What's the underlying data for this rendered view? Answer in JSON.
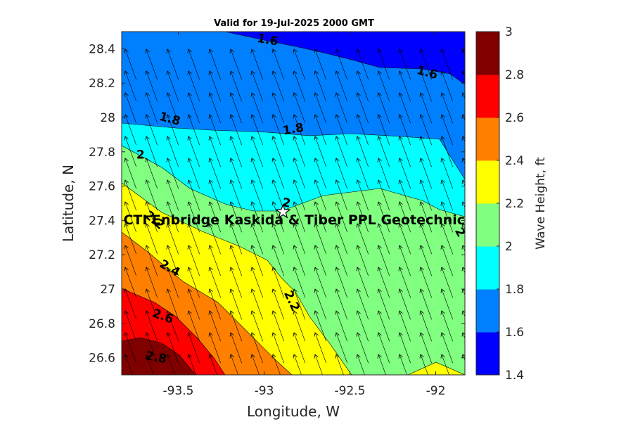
{
  "chart_data": {
    "type": "heatmap",
    "title": "Valid for 19-Jul-2025 2000 GMT",
    "xlabel": "Longitude, W",
    "ylabel": "Latitude, N",
    "colorbar_label": "Wave Height, ft",
    "xlim": [
      -93.83,
      -91.83
    ],
    "ylim": [
      26.5,
      28.5
    ],
    "x_ticks": [
      -93.5,
      -93,
      -92.5,
      -92
    ],
    "x_tick_labels": [
      "-93.5",
      "-93",
      "-92.5",
      "-92"
    ],
    "y_ticks": [
      26.6,
      26.8,
      27.0,
      27.2,
      27.4,
      27.6,
      27.8,
      28.0,
      28.2,
      28.4
    ],
    "y_tick_labels": [
      "26.6",
      "26.8",
      "27",
      "27.2",
      "27.4",
      "27.6",
      "27.8",
      "28",
      "28.2",
      "28.4"
    ],
    "colorbar_ticks": [
      "1.4",
      "1.6",
      "1.8",
      "2",
      "2.2",
      "2.4",
      "2.6",
      "2.8",
      "3"
    ],
    "levels": [
      1.4,
      1.6,
      1.8,
      2.0,
      2.2,
      2.4,
      2.6,
      2.8,
      3.0
    ],
    "level_colors": [
      "#0000ff",
      "#0080ff",
      "#00ffff",
      "#80ff80",
      "#ffff00",
      "#ff8000",
      "#ff0000",
      "#800000"
    ],
    "contour_labels": [
      {
        "text": "1.6",
        "lon": -92.98,
        "lat": 28.45
      },
      {
        "text": "1.6",
        "lon": -92.05,
        "lat": 28.26
      },
      {
        "text": "1.8",
        "lon": -93.55,
        "lat": 27.99
      },
      {
        "text": "1.8",
        "lon": -92.83,
        "lat": 27.93
      },
      {
        "text": "2",
        "lon": -93.72,
        "lat": 27.78
      },
      {
        "text": "2",
        "lon": -92.87,
        "lat": 27.5
      },
      {
        "text": "2",
        "lon": -91.86,
        "lat": 27.33
      },
      {
        "text": "2.2",
        "lon": -93.64,
        "lat": 27.4
      },
      {
        "text": "2.2",
        "lon": -92.84,
        "lat": 26.93
      },
      {
        "text": "2.4",
        "lon": -93.55,
        "lat": 27.12
      },
      {
        "text": "2.6",
        "lon": -93.59,
        "lat": 26.84
      },
      {
        "text": "2.8",
        "lon": -93.63,
        "lat": 26.6
      }
    ],
    "site": {
      "name": "CTI Enbridge  Kaskida & Tiber PPL Geotechnic",
      "lon": -92.89,
      "lat": 27.45,
      "marker": "star"
    },
    "wave_direction_deg_from_north": 340
  }
}
